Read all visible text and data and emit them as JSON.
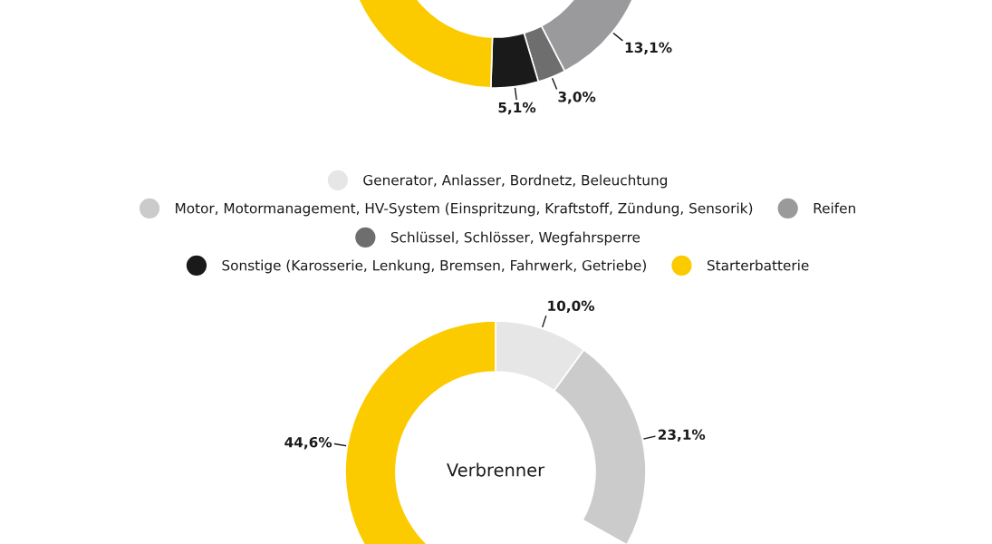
{
  "chart_data": [
    {
      "type": "donut",
      "categories": [
        "Generator, Anlasser, Bordnetz, Beleuchtung",
        "Motor, Motormanagement, HV-System (Einspritzung, Kraftstoff, Zündung, Sensorik)",
        "Reifen",
        "Schlüssel, Schlösser, Wegfahrsperre",
        "Sonstige (Karosserie, Lenkung, Bremsen, Fahrwerk, Getriebe)",
        "Starterbatterie"
      ],
      "values": [
        null,
        null,
        13.1,
        3.0,
        5.1,
        49.5
      ],
      "colors": [
        "#e6e6e6",
        "#cbcbcb",
        "#9a999b",
        "#6e6e6e",
        "#1a1a1a",
        "#fbcb00"
      ],
      "value_labels": [
        null,
        null,
        "13,1%",
        "3,0%",
        "5,1%",
        null
      ],
      "legend": "bottom"
    },
    {
      "type": "donut",
      "values": [
        10.0,
        23.1,
        null,
        null,
        null,
        44.6
      ],
      "categories": [
        null,
        null,
        null,
        null,
        null,
        null
      ],
      "colors": [
        "#e6e6e6",
        "#cbcbcb",
        "#9a999b",
        "#6e6e6e",
        "#1a1a1a",
        "#fbcb00"
      ],
      "value_labels": [
        "10,0%",
        "23,1%",
        null,
        null,
        null,
        "44,6%"
      ],
      "annotations": [
        "Verbrenner"
      ],
      "legend": false
    }
  ]
}
